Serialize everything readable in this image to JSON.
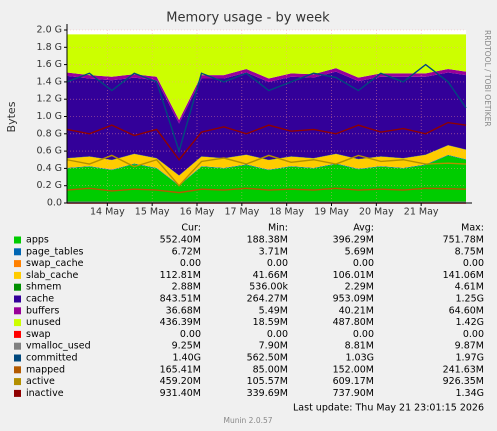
{
  "chart_data": {
    "type": "munin",
    "title": "Memory usage - by week",
    "y_label": "Bytes",
    "side_text": "RRDTOOL / TOBI OETIKER",
    "footer_update": "Last update: Thu May 21 23:01:15 2026",
    "footer_version": "Munin 2.0.57",
    "legend_headers": [
      "Cur:",
      "Min:",
      "Avg:",
      "Max:"
    ],
    "grid": true,
    "xlim": [
      13.1,
      22.0
    ],
    "xticks": [
      {
        "value": 14,
        "label": "14 May"
      },
      {
        "value": 15,
        "label": "15 May"
      },
      {
        "value": 16,
        "label": "16 May"
      },
      {
        "value": 17,
        "label": "17 May"
      },
      {
        "value": 18,
        "label": "18 May"
      },
      {
        "value": 19,
        "label": "19 May"
      },
      {
        "value": 20,
        "label": "20 May"
      },
      {
        "value": 21,
        "label": "21 May"
      }
    ],
    "ylim": [
      0,
      2.0
    ],
    "yticks": [
      {
        "value": 0,
        "label": "0.0"
      },
      {
        "value": 0.2,
        "label": "0.2 G"
      },
      {
        "value": 0.4,
        "label": "0.4 G"
      },
      {
        "value": 0.6,
        "label": "0.6 G"
      },
      {
        "value": 0.8,
        "label": "0.8 G"
      },
      {
        "value": 1.0,
        "label": "1.0 G"
      },
      {
        "value": 1.2,
        "label": "1.2 G"
      },
      {
        "value": 1.4,
        "label": "1.4 G"
      },
      {
        "value": 1.6,
        "label": "1.6 G"
      },
      {
        "value": 1.8,
        "label": "1.8 G"
      },
      {
        "value": 2.0,
        "label": "2.0 G"
      }
    ],
    "x": [
      13.1,
      13.6,
      14.1,
      14.6,
      15.1,
      15.6,
      16.1,
      16.6,
      17.1,
      17.6,
      18.1,
      18.6,
      19.1,
      19.6,
      20.1,
      20.6,
      21.1,
      21.6,
      22.0
    ],
    "series": [
      {
        "name": "apps",
        "color": "#00cc00",
        "kind": "area",
        "stats": [
          "552.40M",
          "188.38M",
          "396.29M",
          "751.78M"
        ],
        "values": [
          0.4,
          0.42,
          0.38,
          0.45,
          0.4,
          0.2,
          0.42,
          0.4,
          0.44,
          0.38,
          0.42,
          0.4,
          0.45,
          0.39,
          0.42,
          0.4,
          0.44,
          0.55,
          0.5
        ]
      },
      {
        "name": "page_tables",
        "color": "#0066b3",
        "kind": "area",
        "stats": [
          "6.72M",
          "3.71M",
          "5.69M",
          "8.75M"
        ],
        "values": [
          0.006,
          0.006,
          0.006,
          0.006,
          0.006,
          0.006,
          0.006,
          0.006,
          0.006,
          0.006,
          0.006,
          0.006,
          0.006,
          0.006,
          0.006,
          0.006,
          0.006,
          0.006,
          0.006
        ]
      },
      {
        "name": "swap_cache",
        "color": "#ff8000",
        "kind": "area",
        "stats": [
          "0.00",
          "0.00",
          "0.00",
          "0.00"
        ],
        "values": [
          0,
          0,
          0,
          0,
          0,
          0,
          0,
          0,
          0,
          0,
          0,
          0,
          0,
          0,
          0,
          0,
          0,
          0,
          0
        ]
      },
      {
        "name": "slab_cache",
        "color": "#ffcc00",
        "kind": "area",
        "stats": [
          "112.81M",
          "41.66M",
          "106.01M",
          "141.06M"
        ],
        "values": [
          0.11,
          0.11,
          0.11,
          0.11,
          0.11,
          0.11,
          0.11,
          0.11,
          0.11,
          0.11,
          0.11,
          0.11,
          0.11,
          0.11,
          0.11,
          0.11,
          0.11,
          0.11,
          0.11
        ]
      },
      {
        "name": "shmem",
        "color": "#008f00",
        "kind": "area",
        "stats": [
          "2.88M",
          "536.00k",
          "2.29M",
          "4.61M"
        ],
        "values": [
          0.003,
          0.003,
          0.003,
          0.003,
          0.003,
          0.003,
          0.003,
          0.003,
          0.003,
          0.003,
          0.003,
          0.003,
          0.003,
          0.003,
          0.003,
          0.003,
          0.003,
          0.003,
          0.003
        ]
      },
      {
        "name": "cache",
        "color": "#330099",
        "kind": "area",
        "stats": [
          "843.51M",
          "264.27M",
          "953.09M",
          "1.25G"
        ],
        "values": [
          0.95,
          0.9,
          0.92,
          0.88,
          0.9,
          0.6,
          0.9,
          0.92,
          0.95,
          0.9,
          0.92,
          0.93,
          0.95,
          0.9,
          0.92,
          0.94,
          0.9,
          0.84,
          0.86
        ]
      },
      {
        "name": "buffers",
        "color": "#990099",
        "kind": "area",
        "stats": [
          "36.68M",
          "5.49M",
          "40.21M",
          "64.60M"
        ],
        "values": [
          0.04,
          0.04,
          0.04,
          0.04,
          0.04,
          0.04,
          0.04,
          0.04,
          0.04,
          0.04,
          0.04,
          0.04,
          0.04,
          0.04,
          0.04,
          0.04,
          0.04,
          0.04,
          0.04
        ]
      },
      {
        "name": "unused",
        "color": "#ccff00",
        "kind": "area",
        "stats": [
          "436.39M",
          "18.59M",
          "487.80M",
          "1.42G"
        ],
        "values": [
          0.44,
          0.47,
          0.49,
          0.46,
          0.49,
          0.99,
          0.47,
          0.47,
          0.4,
          0.51,
          0.45,
          0.46,
          0.39,
          0.5,
          0.45,
          0.45,
          0.45,
          0.4,
          0.43
        ]
      },
      {
        "name": "swap",
        "color": "#ff0000",
        "kind": "line",
        "stats": [
          "0.00",
          "0.00",
          "0.00",
          "0.00"
        ],
        "values": [
          0,
          0,
          0,
          0,
          0,
          0,
          0,
          0,
          0,
          0,
          0,
          0,
          0,
          0,
          0,
          0,
          0,
          0,
          0
        ]
      },
      {
        "name": "vmalloc_used",
        "color": "#808080",
        "kind": "line",
        "stats": [
          "9.25M",
          "7.90M",
          "8.81M",
          "9.87M"
        ],
        "values": [
          0.009,
          0.009,
          0.009,
          0.009,
          0.009,
          0.009,
          0.009,
          0.009,
          0.009,
          0.009,
          0.009,
          0.009,
          0.009,
          0.009,
          0.009,
          0.009,
          0.009,
          0.009,
          0.009
        ]
      },
      {
        "name": "committed",
        "color": "#00487d",
        "kind": "line",
        "stats": [
          "1.40G",
          "562.50M",
          "1.03G",
          "1.97G"
        ],
        "values": [
          1.4,
          1.5,
          1.3,
          1.5,
          1.4,
          0.6,
          1.5,
          1.4,
          1.5,
          1.3,
          1.4,
          1.5,
          1.45,
          1.3,
          1.5,
          1.4,
          1.6,
          1.4,
          1.1
        ]
      },
      {
        "name": "mapped",
        "color": "#b35a00",
        "kind": "line",
        "stats": [
          "165.41M",
          "85.00M",
          "152.00M",
          "241.63M"
        ],
        "values": [
          0.15,
          0.17,
          0.14,
          0.16,
          0.15,
          0.12,
          0.16,
          0.15,
          0.17,
          0.15,
          0.16,
          0.15,
          0.17,
          0.15,
          0.16,
          0.15,
          0.17,
          0.165,
          0.16
        ]
      },
      {
        "name": "active",
        "color": "#b38f00",
        "kind": "line",
        "stats": [
          "459.20M",
          "105.57M",
          "609.17M",
          "926.35M"
        ],
        "values": [
          0.5,
          0.45,
          0.55,
          0.42,
          0.5,
          0.2,
          0.48,
          0.52,
          0.45,
          0.55,
          0.47,
          0.5,
          0.45,
          0.55,
          0.48,
          0.5,
          0.45,
          0.46,
          0.45
        ]
      },
      {
        "name": "inactive",
        "color": "#8f0000",
        "kind": "line",
        "stats": [
          "931.40M",
          "339.69M",
          "737.90M",
          "1.34G"
        ],
        "values": [
          0.85,
          0.8,
          0.9,
          0.78,
          0.85,
          0.5,
          0.82,
          0.88,
          0.8,
          0.9,
          0.83,
          0.85,
          0.8,
          0.9,
          0.82,
          0.86,
          0.8,
          0.93,
          0.9
        ]
      }
    ]
  }
}
